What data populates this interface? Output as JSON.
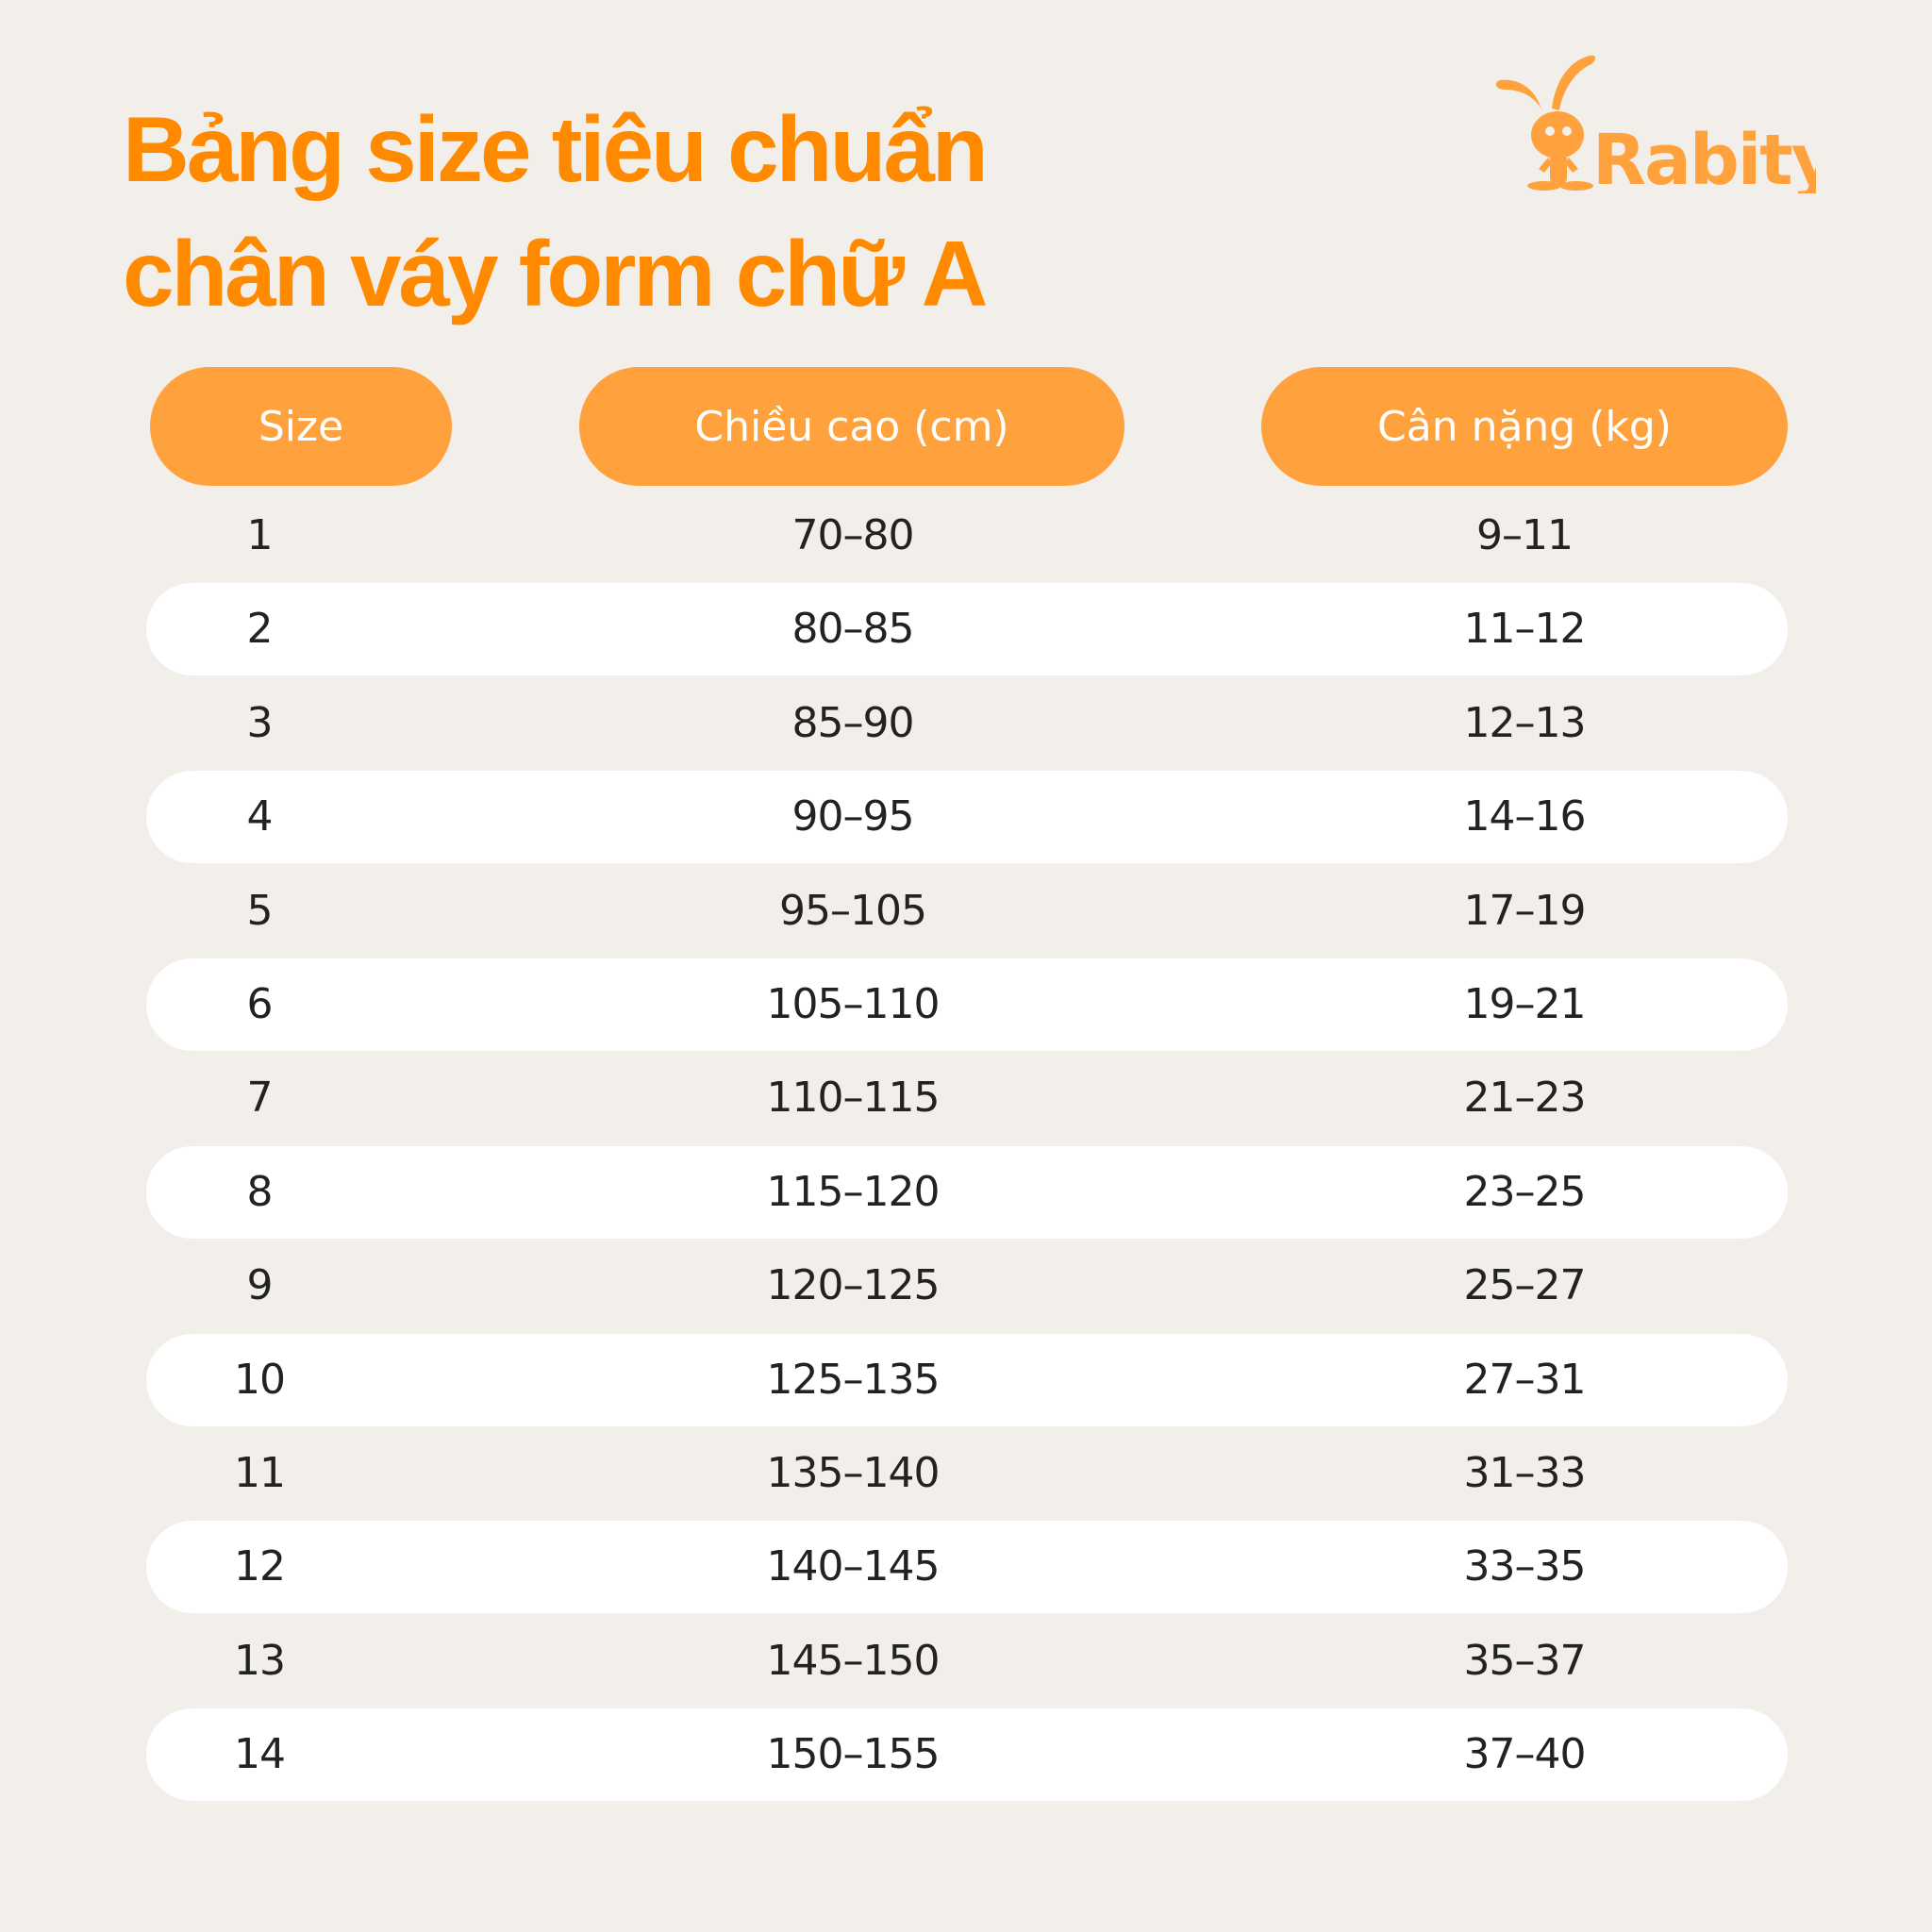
{
  "title": {
    "line1": "Bảng size tiêu chuẩn",
    "line2": "chân váy form chữ A"
  },
  "logo": {
    "text": "Rabity",
    "icon": "rabbit-mascot-icon"
  },
  "colors": {
    "title": "#ff8a00",
    "header_pill": "#ffa23e",
    "background": "#f2efea",
    "row_alt": "#ffffff"
  },
  "table": {
    "headers": [
      "Size",
      "Chiều cao (cm)",
      "Cân nặng (kg)"
    ],
    "rows": [
      [
        "1",
        "70–80",
        "9–11"
      ],
      [
        "2",
        "80–85",
        "11–12"
      ],
      [
        "3",
        "85–90",
        "12–13"
      ],
      [
        "4",
        "90–95",
        "14–16"
      ],
      [
        "5",
        "95–105",
        "17–19"
      ],
      [
        "6",
        "105–110",
        "19–21"
      ],
      [
        "7",
        "110–115",
        "21–23"
      ],
      [
        "8",
        "115–120",
        "23–25"
      ],
      [
        "9",
        "120–125",
        "25–27"
      ],
      [
        "10",
        "125–135",
        "27–31"
      ],
      [
        "11",
        "135–140",
        "31–33"
      ],
      [
        "12",
        "140–145",
        "33–35"
      ],
      [
        "13",
        "145–150",
        "35–37"
      ],
      [
        "14",
        "150–155",
        "37–40"
      ]
    ]
  }
}
